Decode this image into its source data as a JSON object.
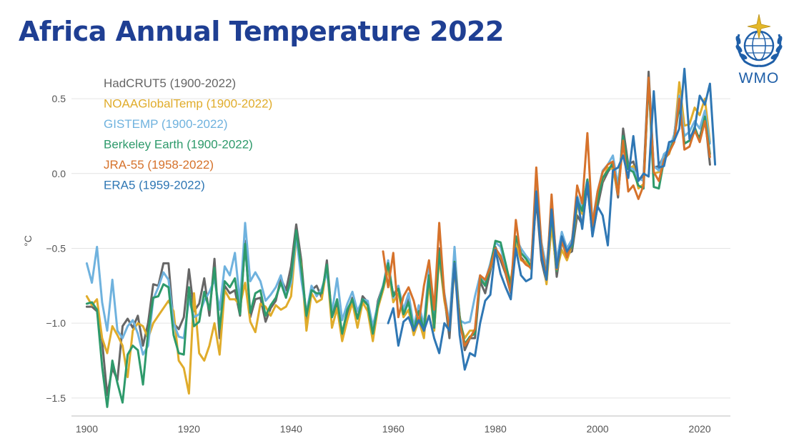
{
  "title": "Africa Annual Temperature 2022",
  "logo": {
    "text": "WMO",
    "icon": "wmo-emblem-icon",
    "color": "#1f5fa8"
  },
  "chart_data": {
    "type": "line",
    "title": "Africa Annual Temperature 2022",
    "ylabel": "°C",
    "xlabel": "",
    "xlim": [
      1897,
      2026
    ],
    "ylim": [
      -1.62,
      0.72
    ],
    "xticks": [
      1900,
      1920,
      1940,
      1960,
      1980,
      2000,
      2020
    ],
    "yticks": [
      0.5,
      0.0,
      -0.5,
      -1.0,
      -1.5
    ],
    "ytick_labels": [
      "0.5",
      "0.0",
      "−0.5",
      "−1.0",
      "−1.5"
    ],
    "grid": "horizontal",
    "legend_position": "top-left",
    "series": [
      {
        "name": "HadCRUT5 (1900-2022)",
        "color": "#666666",
        "start": 1900,
        "values": [
          -0.89,
          -0.89,
          -0.92,
          -1.12,
          -1.48,
          -1.3,
          -1.38,
          -1.02,
          -0.97,
          -1.03,
          -0.95,
          -1.15,
          -1.0,
          -0.74,
          -0.75,
          -0.6,
          -0.6,
          -1.0,
          -1.04,
          -0.96,
          -0.64,
          -0.92,
          -0.87,
          -0.7,
          -0.95,
          -0.57,
          -1.1,
          -0.75,
          -0.8,
          -0.78,
          -0.95,
          -0.45,
          -0.96,
          -0.84,
          -0.83,
          -0.99,
          -0.9,
          -0.85,
          -0.7,
          -0.78,
          -0.62,
          -0.34,
          -0.58,
          -0.98,
          -0.78,
          -0.75,
          -0.83,
          -0.58,
          -0.96,
          -0.87,
          -1.1,
          -0.93,
          -0.83,
          -0.97,
          -0.82,
          -0.86,
          -1.08,
          -0.85,
          -0.75,
          -0.62,
          -0.81,
          -0.76,
          -0.95,
          -0.84,
          -1.05,
          -0.9,
          -1.07,
          -0.67,
          -1.05,
          -0.5,
          -0.82,
          -1.1,
          -0.6,
          -0.95,
          -1.18,
          -1.1,
          -1.1,
          -0.72,
          -0.8,
          -0.65,
          -0.49,
          -0.58,
          -0.67,
          -0.8,
          -0.42,
          -0.56,
          -0.6,
          -0.62,
          -0.17,
          -0.58,
          -0.73,
          -0.29,
          -0.69,
          -0.45,
          -0.54,
          -0.52,
          -0.28,
          -0.34,
          -0.08,
          -0.41,
          -0.22,
          -0.06,
          0.01,
          0.06,
          -0.16,
          0.3,
          0.06,
          0.08,
          -0.04,
          -0.02,
          0.68,
          0.04,
          0.05,
          0.12,
          0.15,
          0.26,
          0.52,
          0.2,
          0.22,
          0.28,
          0.24,
          0.38,
          0.06
        ]
      },
      {
        "name": "NOAAGlobalTemp (1900-2022)",
        "color": "#e0ac2b",
        "start": 1900,
        "values": [
          -0.82,
          -0.88,
          -0.84,
          -1.1,
          -1.2,
          -1.02,
          -1.08,
          -1.15,
          -1.36,
          -1.05,
          -1.0,
          -1.02,
          -1.1,
          -1.0,
          -0.95,
          -0.9,
          -0.85,
          -0.92,
          -1.25,
          -1.3,
          -1.47,
          -0.8,
          -1.2,
          -1.25,
          -1.15,
          -1.0,
          -1.21,
          -0.78,
          -0.84,
          -0.84,
          -0.88,
          -0.73,
          -0.99,
          -1.06,
          -0.87,
          -0.89,
          -0.95,
          -0.88,
          -0.91,
          -0.89,
          -0.82,
          -0.43,
          -0.61,
          -1.05,
          -0.8,
          -0.86,
          -0.84,
          -0.62,
          -1.03,
          -0.9,
          -1.12,
          -0.98,
          -0.86,
          -1.03,
          -0.86,
          -0.92,
          -1.12,
          -0.9,
          -0.78,
          -0.64,
          -0.86,
          -0.8,
          -0.96,
          -0.91,
          -1.08,
          -0.98,
          -1.1,
          -0.73,
          -1.05,
          -0.56,
          -0.85,
          -1.03,
          -0.64,
          -0.99,
          -1.1,
          -1.05,
          -1.05,
          -0.69,
          -0.74,
          -0.63,
          -0.5,
          -0.56,
          -0.63,
          -0.72,
          -0.46,
          -0.58,
          -0.59,
          -0.64,
          -0.11,
          -0.49,
          -0.74,
          -0.35,
          -0.65,
          -0.51,
          -0.58,
          -0.48,
          -0.22,
          -0.27,
          -0.05,
          -0.33,
          -0.15,
          -0.04,
          0.04,
          0.03,
          -0.14,
          0.22,
          0.03,
          0.05,
          -0.1,
          -0.07,
          0.62,
          0.0,
          0.01,
          0.1,
          0.13,
          0.24,
          0.61,
          0.32,
          0.33,
          0.44,
          0.39,
          0.5,
          0.21
        ]
      },
      {
        "name": "GISTEMP (1900-2022)",
        "color": "#6fb2de",
        "start": 1900,
        "values": [
          -0.6,
          -0.73,
          -0.49,
          -0.86,
          -1.05,
          -0.71,
          -1.05,
          -1.1,
          -1.02,
          -0.98,
          -1.07,
          -1.21,
          -1.15,
          -0.84,
          -0.76,
          -0.66,
          -0.71,
          -1.0,
          -1.09,
          -1.1,
          -0.84,
          -0.96,
          -0.94,
          -0.85,
          -0.79,
          -0.71,
          -0.91,
          -0.62,
          -0.68,
          -0.53,
          -0.86,
          -0.33,
          -0.72,
          -0.66,
          -0.72,
          -0.85,
          -0.81,
          -0.76,
          -0.68,
          -0.82,
          -0.73,
          -0.41,
          -0.71,
          -0.93,
          -0.75,
          -0.82,
          -0.77,
          -0.66,
          -0.93,
          -0.7,
          -0.98,
          -0.87,
          -0.79,
          -0.92,
          -0.84,
          -0.85,
          -1.02,
          -0.87,
          -0.75,
          -0.58,
          -0.83,
          -0.75,
          -0.91,
          -0.8,
          -1.02,
          -0.88,
          -1.01,
          -0.63,
          -0.97,
          -0.53,
          -0.8,
          -1.0,
          -0.49,
          -0.98,
          -1.0,
          -0.99,
          -0.82,
          -0.68,
          -0.72,
          -0.6,
          -0.46,
          -0.49,
          -0.63,
          -0.79,
          -0.43,
          -0.5,
          -0.55,
          -0.59,
          -0.09,
          -0.46,
          -0.63,
          -0.23,
          -0.58,
          -0.39,
          -0.5,
          -0.44,
          -0.15,
          -0.24,
          -0.04,
          -0.32,
          -0.12,
          0.02,
          0.06,
          0.12,
          -0.08,
          0.24,
          0.04,
          0.03,
          -0.03,
          -0.05,
          0.6,
          0.05,
          0.02,
          0.13,
          0.16,
          0.26,
          0.52,
          0.25,
          0.28,
          0.35,
          0.3,
          0.42,
          0.2
        ]
      },
      {
        "name": "Berkeley Earth (1900-2022)",
        "color": "#2e9a6b",
        "start": 1900,
        "values": [
          -0.87,
          -0.86,
          -0.91,
          -1.29,
          -1.56,
          -1.25,
          -1.4,
          -1.53,
          -1.21,
          -1.15,
          -1.18,
          -1.41,
          -1.06,
          -0.83,
          -0.82,
          -0.74,
          -0.76,
          -1.08,
          -1.2,
          -1.21,
          -0.76,
          -1.02,
          -0.99,
          -0.79,
          -0.91,
          -0.63,
          -1.04,
          -0.72,
          -0.76,
          -0.7,
          -0.94,
          -0.47,
          -0.93,
          -0.8,
          -0.78,
          -0.95,
          -0.88,
          -0.83,
          -0.73,
          -0.83,
          -0.69,
          -0.38,
          -0.63,
          -0.95,
          -0.78,
          -0.8,
          -0.8,
          -0.61,
          -0.96,
          -0.84,
          -1.07,
          -0.91,
          -0.84,
          -0.97,
          -0.84,
          -0.88,
          -1.07,
          -0.88,
          -0.76,
          -0.6,
          -0.82,
          -0.77,
          -0.94,
          -0.86,
          -1.05,
          -0.92,
          -1.05,
          -0.68,
          -1.03,
          -0.52,
          -0.82,
          -1.05,
          -0.59,
          -0.96,
          -1.14,
          -1.09,
          -1.07,
          -0.7,
          -0.75,
          -0.62,
          -0.45,
          -0.46,
          -0.6,
          -0.75,
          -0.42,
          -0.53,
          -0.57,
          -0.62,
          -0.12,
          -0.51,
          -0.68,
          -0.27,
          -0.65,
          -0.46,
          -0.53,
          -0.49,
          -0.18,
          -0.25,
          -0.04,
          -0.37,
          -0.18,
          -0.03,
          0.02,
          0.07,
          -0.13,
          0.25,
          0.03,
          0.01,
          -0.08,
          -0.1,
          0.63,
          -0.09,
          -0.1,
          0.09,
          0.14,
          0.23,
          0.45,
          0.2,
          0.22,
          0.31,
          0.22,
          0.38,
          0.13
        ]
      },
      {
        "name": "JRA-55 (1958-2022)",
        "color": "#d6722b",
        "start": 1958,
        "values": [
          -0.52,
          -0.76,
          -0.53,
          -0.96,
          -0.82,
          -0.76,
          -0.85,
          -1.0,
          -0.75,
          -0.58,
          -0.91,
          -0.33,
          -0.82,
          -1.04,
          -0.6,
          -1.0,
          -1.15,
          -1.1,
          -1.04,
          -0.68,
          -0.71,
          -0.62,
          -0.5,
          -0.55,
          -0.66,
          -0.79,
          -0.31,
          -0.57,
          -0.61,
          -0.63,
          0.04,
          -0.48,
          -0.71,
          -0.14,
          -0.64,
          -0.45,
          -0.56,
          -0.46,
          -0.08,
          -0.2,
          0.27,
          -0.35,
          -0.12,
          0.01,
          0.06,
          0.08,
          -0.14,
          0.22,
          -0.12,
          -0.08,
          -0.17,
          -0.08,
          0.64,
          0.01,
          -0.05,
          0.09,
          0.14,
          0.21,
          0.5,
          0.16,
          0.18,
          0.29,
          0.21,
          0.35,
          0.11
        ]
      },
      {
        "name": "ERA5 (1959-2022)",
        "color": "#2f77b4",
        "start": 1959,
        "values": [
          -1.0,
          -0.9,
          -1.15,
          -0.99,
          -0.96,
          -1.05,
          -0.98,
          -1.05,
          -0.95,
          -1.1,
          -1.2,
          -1.0,
          -1.05,
          -0.6,
          -1.08,
          -1.31,
          -1.2,
          -1.22,
          -1.0,
          -0.85,
          -0.81,
          -0.51,
          -0.67,
          -0.76,
          -0.84,
          -0.5,
          -0.68,
          -0.72,
          -0.7,
          -0.12,
          -0.55,
          -0.71,
          -0.24,
          -0.63,
          -0.42,
          -0.52,
          -0.47,
          -0.16,
          -0.37,
          -0.06,
          -0.42,
          -0.22,
          -0.28,
          -0.48,
          0.02,
          0.04,
          0.12,
          -0.03,
          0.25,
          -0.05,
          0.0,
          -0.02,
          0.55,
          0.04,
          0.05,
          0.21,
          0.22,
          0.3,
          0.7,
          0.23,
          0.3,
          0.52,
          0.46,
          0.6,
          0.06
        ]
      }
    ]
  }
}
